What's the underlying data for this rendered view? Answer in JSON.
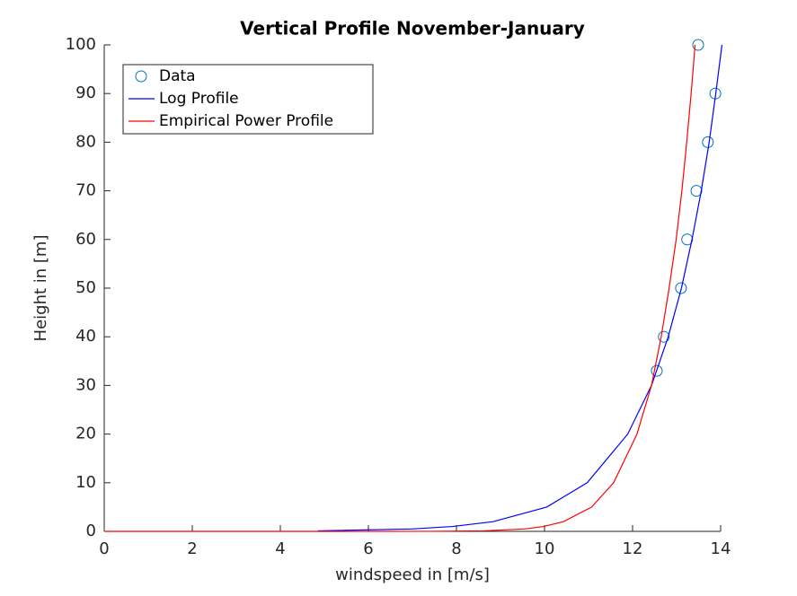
{
  "chart_data": {
    "type": "line",
    "title": "Vertical Profile November-January",
    "xlabel": "windspeed in [m/s]",
    "ylabel": "Height in [m]",
    "xlim": [
      0,
      14
    ],
    "ylim": [
      0,
      100
    ],
    "xticks": [
      0,
      2,
      4,
      6,
      8,
      10,
      12,
      14
    ],
    "yticks": [
      0,
      10,
      20,
      30,
      40,
      50,
      60,
      70,
      80,
      90,
      100
    ],
    "grid": false,
    "legend": "upper left",
    "series": [
      {
        "name": "Data",
        "color": "#0072bd",
        "style": "markers",
        "x": [
          12.55,
          12.71,
          13.1,
          13.24,
          13.45,
          13.71,
          13.88,
          13.49
        ],
        "values": [
          33,
          40,
          50,
          60,
          70,
          80,
          90,
          100
        ]
      },
      {
        "name": "Log Profile",
        "color": "#0000ff",
        "style": "line",
        "x": [
          4.85,
          6.98,
          7.91,
          8.83,
          10.05,
          10.97,
          11.89,
          12.43,
          12.81,
          13.11,
          13.35,
          13.56,
          13.74,
          13.89,
          14.03
        ],
        "values": [
          0.1,
          0.5,
          1,
          2,
          5,
          10,
          20,
          30,
          40,
          50,
          60,
          70,
          80,
          90,
          100
        ]
      },
      {
        "name": "Empirical Power Profile",
        "color": "#ff0000",
        "style": "line",
        "x": [
          0,
          2.27,
          4.77,
          7.42,
          8.61,
          9.55,
          9.98,
          10.43,
          11.07,
          11.57,
          12.1,
          12.43,
          12.65,
          12.83,
          12.99,
          13.12,
          13.23,
          13.33,
          13.42
        ],
        "values": [
          0,
          1e-10,
          1e-05,
          0.01,
          0.1,
          0.5,
          1,
          2,
          5,
          10,
          20,
          30,
          40,
          50,
          60,
          70,
          80,
          90,
          100
        ]
      }
    ]
  }
}
